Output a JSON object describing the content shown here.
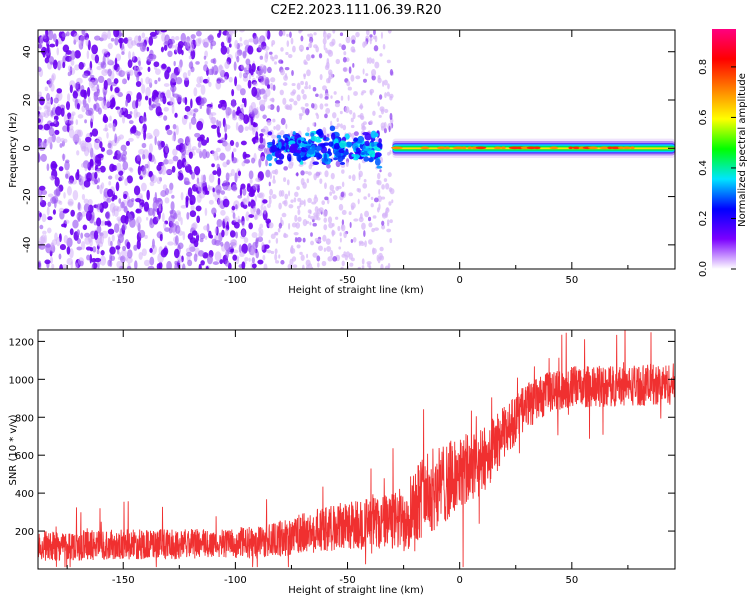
{
  "title": "C2E2.2023.111.06.39.R20",
  "chart_data": [
    {
      "type": "heatmap",
      "xlabel": "Height of straight line (km)",
      "ylabel": "Frequency (Hz)",
      "xlim": [
        -188,
        96
      ],
      "ylim": [
        -50,
        49
      ],
      "xticks": [
        -150,
        -100,
        -50,
        0,
        50
      ],
      "yticks": [
        -40,
        -20,
        0,
        20,
        40
      ],
      "colorbar": {
        "label": "Normalized spectral amplitude",
        "range": [
          0.0,
          0.95
        ],
        "ticks": [
          0.0,
          0.2,
          0.4,
          0.6,
          0.8
        ],
        "colormap": "rainbow (violet-blue-cyan-green-yellow-red-magenta)",
        "colors": [
          "#ffffff",
          "#7b00ff",
          "#0000ff",
          "#00e5ff",
          "#00ff00",
          "#ffff00",
          "#ff8000",
          "#ff0000",
          "#ff0080"
        ]
      },
      "regions": [
        {
          "description": "broadband noise",
          "x_range": [
            -188,
            -85
          ],
          "freq_range": [
            -50,
            49
          ],
          "amplitude": 0.05
        },
        {
          "description": "sparse noise",
          "x_range": [
            -85,
            -30
          ],
          "freq_range": [
            -50,
            49
          ],
          "amplitude": 0.02
        },
        {
          "description": "blob cluster near 0 Hz",
          "x_range": [
            -85,
            -35
          ],
          "freq_range": [
            -8,
            8
          ],
          "amplitude": 0.3
        },
        {
          "description": "narrow band signal",
          "x_range": [
            -30,
            96
          ],
          "freq_range": [
            -2,
            2
          ],
          "amplitude": 0.6
        }
      ]
    },
    {
      "type": "line",
      "xlabel": "Height of straight line (km)",
      "ylabel": "SNR (10 * v/v)",
      "xlim": [
        -188,
        96
      ],
      "ylim": [
        0,
        1260
      ],
      "xticks": [
        -150,
        -100,
        -50,
        0,
        50
      ],
      "yticks": [
        200,
        400,
        600,
        800,
        1000,
        1200
      ],
      "color": "#f03030",
      "series": [
        {
          "name": "SNR",
          "x": [
            -188,
            -170,
            -150,
            -130,
            -110,
            -90,
            -80,
            -70,
            -60,
            -50,
            -40,
            -30,
            -25,
            -20,
            -10,
            0,
            10,
            20,
            30,
            40,
            50,
            60,
            70,
            80,
            96
          ],
          "values": [
            120,
            125,
            130,
            130,
            135,
            140,
            160,
            185,
            210,
            230,
            240,
            250,
            260,
            360,
            430,
            500,
            560,
            720,
            860,
            930,
            960,
            960,
            965,
            970,
            975
          ],
          "noise_amplitude": [
            80,
            80,
            80,
            80,
            80,
            85,
            95,
            110,
            120,
            130,
            140,
            150,
            180,
            220,
            220,
            200,
            180,
            140,
            120,
            110,
            110,
            110,
            110,
            110,
            110
          ]
        }
      ]
    }
  ],
  "colors": {
    "axis": "#000000",
    "line": "#f03030",
    "background": "#ffffff"
  }
}
